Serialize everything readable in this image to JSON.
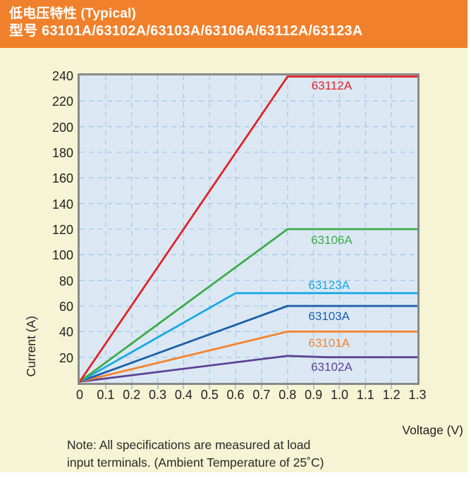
{
  "header": {
    "line1": "低电压特性 (Typical)",
    "line2": "型号 63101A/63102A/63103A/63106A/63112A/63123A",
    "bg_color": "#f0802b",
    "text_color": "#ffffff"
  },
  "note": {
    "line1": "Note: All specifications are measured at load",
    "line2": "input terminals. (Ambient Temperature of 25˚C)"
  },
  "chart_data": {
    "type": "line",
    "title": "低电压特性 (Typical) 型号 63101A/63102A/63103A/63106A/63112A/63123A",
    "xlabel": "Voltage (V)",
    "ylabel": "Current (A)",
    "xlim": [
      0,
      1.3
    ],
    "ylim": [
      0,
      240
    ],
    "x_tick_labels": [
      "0",
      "0.1",
      "0.2",
      "0.3",
      "0.4",
      "0.5",
      "0.6",
      "0.7",
      "0.8",
      "0.9",
      "1.0",
      "1.1",
      "1.2",
      "1.3"
    ],
    "y_tick_values": [
      20,
      40,
      60,
      80,
      100,
      120,
      140,
      160,
      180,
      200,
      220,
      240
    ],
    "grid": "dashed, every 0.1 V vertical and every 20 A horizontal",
    "legend_position": "labels next to lines inside plot",
    "colors": {
      "plot_bg": "#dbe8f4",
      "grid": "#a5cbe8",
      "border": "#898989",
      "page_bg": "#f5f4d4",
      "text": "#231f20"
    },
    "series": [
      {
        "name": "63102A",
        "color": "#5d4395",
        "points": [
          [
            0,
            0
          ],
          [
            0.8,
            21
          ],
          [
            0.95,
            20
          ],
          [
            1.3,
            20
          ]
        ],
        "label_at": [
          0.97,
          12
        ]
      },
      {
        "name": "63101A",
        "color": "#f5842e",
        "points": [
          [
            0,
            0
          ],
          [
            0.8,
            40
          ],
          [
            1.3,
            40
          ]
        ],
        "label_at": [
          0.96,
          31
        ]
      },
      {
        "name": "63103A",
        "color": "#1c5fa9",
        "points": [
          [
            0,
            0
          ],
          [
            0.8,
            60
          ],
          [
            1.3,
            60
          ]
        ],
        "label_at": [
          0.96,
          52
        ]
      },
      {
        "name": "63123A",
        "color": "#19a8e4",
        "points": [
          [
            0,
            0
          ],
          [
            0.6,
            70
          ],
          [
            1.3,
            70
          ]
        ],
        "label_at": [
          0.96,
          76
        ]
      },
      {
        "name": "63106A",
        "color": "#3dab49",
        "points": [
          [
            0,
            0
          ],
          [
            0.8,
            120
          ],
          [
            1.3,
            120
          ]
        ],
        "label_at": [
          0.97,
          111
        ]
      },
      {
        "name": "63112A",
        "color": "#e32128",
        "points": [
          [
            0,
            0
          ],
          [
            0.8,
            240
          ],
          [
            1.3,
            240
          ]
        ],
        "label_at": [
          0.97,
          232
        ]
      }
    ]
  }
}
